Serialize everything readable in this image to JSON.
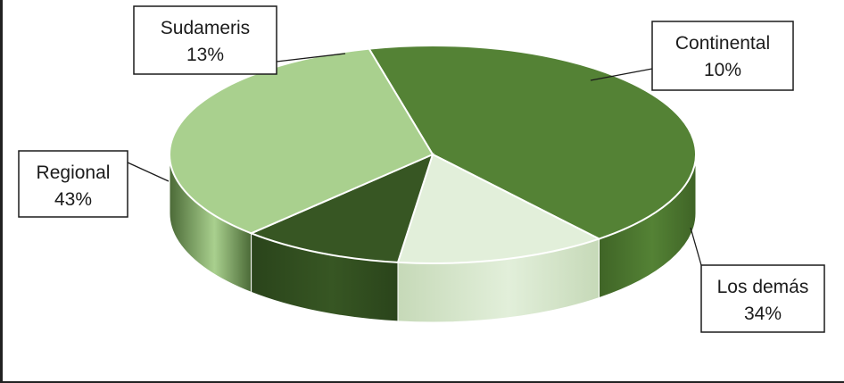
{
  "chart_data": {
    "type": "pie",
    "three_d": true,
    "title": "",
    "categories": [
      "Regional",
      "Sudameris",
      "Continental",
      "Los demás"
    ],
    "values": [
      43,
      13,
      10,
      34
    ],
    "labels": [
      {
        "name": "Regional",
        "value": "43%"
      },
      {
        "name": "Sudameris",
        "value": "13%"
      },
      {
        "name": "Continental",
        "value": "10%"
      },
      {
        "name": "Los demás",
        "value": "34%"
      }
    ],
    "colors": [
      "#548235",
      "#e2efda",
      "#375623",
      "#a9d08e"
    ],
    "side_colors": [
      "#3f6426",
      "#c6d9b8",
      "#2a441b",
      "#4b6a37"
    ],
    "legend": "none",
    "label_style": "callouts"
  }
}
